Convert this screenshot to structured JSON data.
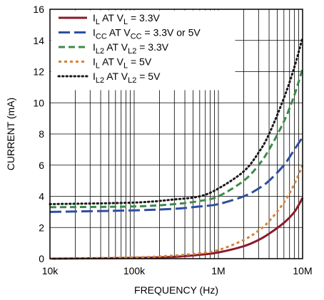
{
  "chart_data": {
    "type": "line",
    "title": "",
    "xlabel": "FREQUENCY (Hz)",
    "ylabel": "CURRENT (mA)",
    "x_scale": "log",
    "xlim": [
      10000,
      10000000
    ],
    "ylim": [
      0,
      16
    ],
    "grid": true,
    "legend_position": "top-left",
    "x_ticks": [
      {
        "value": 10000,
        "label": "10k"
      },
      {
        "value": 100000,
        "label": "100k"
      },
      {
        "value": 1000000,
        "label": "1M"
      },
      {
        "value": 10000000,
        "label": "10M"
      }
    ],
    "y_ticks": [
      {
        "value": 0,
        "label": "0"
      },
      {
        "value": 2,
        "label": "2"
      },
      {
        "value": 4,
        "label": "4"
      },
      {
        "value": 6,
        "label": "6"
      },
      {
        "value": 8,
        "label": "8"
      },
      {
        "value": 10,
        "label": "10"
      },
      {
        "value": 12,
        "label": "12"
      },
      {
        "value": 14,
        "label": "14"
      },
      {
        "value": 16,
        "label": "16"
      }
    ],
    "series": [
      {
        "name": "I_L AT V_L = 3.3V",
        "legend": {
          "parts": [
            {
              "t": "I"
            },
            {
              "t": "L",
              "sub": true
            },
            {
              "t": " AT V"
            },
            {
              "t": "L",
              "sub": true
            },
            {
              "t": " = 3.3V"
            }
          ]
        },
        "color": "#8b1a2b",
        "dash": "solid",
        "x": [
          10000,
          100000,
          300000,
          600000,
          1000000,
          2000000,
          3000000,
          4000000,
          6000000,
          8000000,
          10000000
        ],
        "y": [
          0.0,
          0.05,
          0.12,
          0.25,
          0.4,
          0.8,
          1.2,
          1.6,
          2.3,
          3.0,
          3.9
        ]
      },
      {
        "name": "I_CC AT V_CC = 3.3V or 5V",
        "legend": {
          "parts": [
            {
              "t": "I"
            },
            {
              "t": "CC",
              "sub": true
            },
            {
              "t": " AT V"
            },
            {
              "t": "CC",
              "sub": true
            },
            {
              "t": " = 3.3V or 5V"
            }
          ]
        },
        "color": "#2e4ea0",
        "dash": "long",
        "x": [
          10000,
          100000,
          300000,
          600000,
          1000000,
          2000000,
          3000000,
          4000000,
          6000000,
          8000000,
          10000000
        ],
        "y": [
          3.0,
          3.1,
          3.2,
          3.35,
          3.5,
          4.0,
          4.5,
          5.0,
          6.0,
          7.0,
          7.8
        ]
      },
      {
        "name": "I_L2 AT V_L2 = 3.3V",
        "legend": {
          "parts": [
            {
              "t": "I"
            },
            {
              "t": "L2",
              "sub": true
            },
            {
              "t": " AT V"
            },
            {
              "t": "L2",
              "sub": true
            },
            {
              "t": " = 3.3V"
            }
          ]
        },
        "color": "#3d8b4a",
        "dash": "dash",
        "x": [
          10000,
          100000,
          300000,
          600000,
          1000000,
          2000000,
          3000000,
          4000000,
          6000000,
          8000000,
          10000000
        ],
        "y": [
          3.3,
          3.35,
          3.5,
          3.7,
          4.0,
          5.0,
          6.0,
          7.0,
          8.8,
          10.5,
          12.2
        ]
      },
      {
        "name": "I_L AT V_L = 5V",
        "legend": {
          "parts": [
            {
              "t": "I"
            },
            {
              "t": "L",
              "sub": true
            },
            {
              "t": " AT V"
            },
            {
              "t": "L",
              "sub": true
            },
            {
              "t": " = 5V"
            }
          ]
        },
        "color": "#d4843a",
        "dash": "short",
        "x": [
          10000,
          100000,
          300000,
          600000,
          1000000,
          2000000,
          3000000,
          4000000,
          6000000,
          8000000,
          10000000
        ],
        "y": [
          0.0,
          0.08,
          0.2,
          0.35,
          0.55,
          1.2,
          1.8,
          2.4,
          3.6,
          4.8,
          6.0
        ]
      },
      {
        "name": "I_L2 AT V_L2 = 5V",
        "legend": {
          "parts": [
            {
              "t": "I"
            },
            {
              "t": "L2",
              "sub": true
            },
            {
              "t": " AT V"
            },
            {
              "t": "L2",
              "sub": true
            },
            {
              "t": " = 5V"
            }
          ]
        },
        "color": "#1a1a1a",
        "dash": "dot",
        "x": [
          10000,
          100000,
          300000,
          600000,
          1000000,
          2000000,
          3000000,
          4000000,
          6000000,
          8000000,
          10000000
        ],
        "y": [
          3.5,
          3.6,
          3.8,
          4.0,
          4.5,
          5.6,
          6.8,
          8.0,
          10.3,
          12.3,
          14.2
        ]
      }
    ]
  }
}
